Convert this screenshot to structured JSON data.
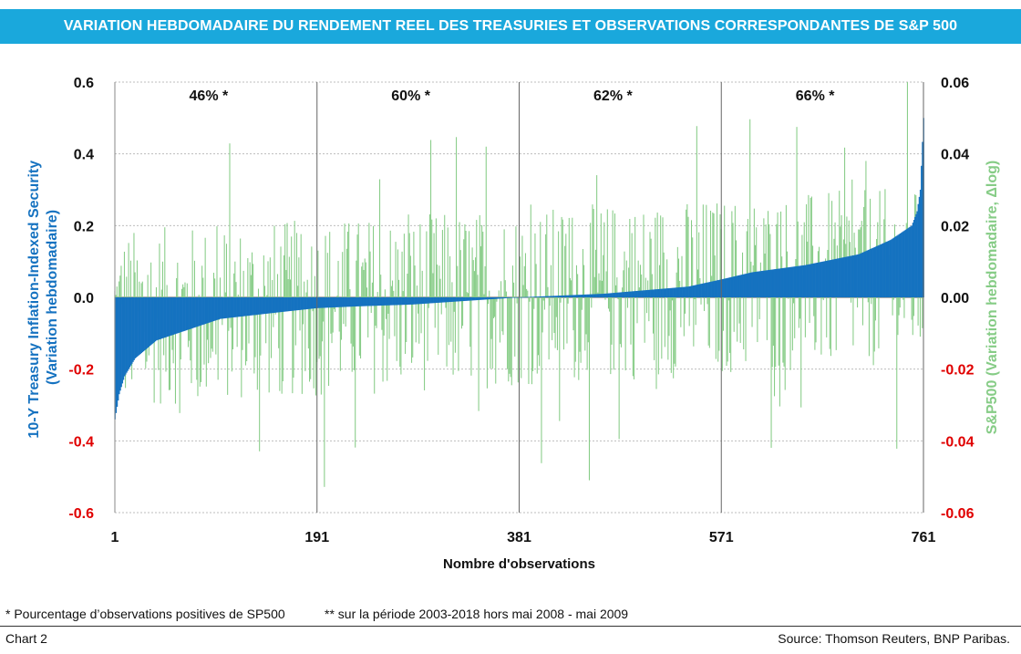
{
  "title": "VARIATION HEBDOMADAIRE DU RENDEMENT REEL DES TREASURIES ET OBSERVATIONS CORRESPONDANTES DE S&P 500",
  "chart_data": {
    "type": "bar",
    "x_label": "Nombre d'observations",
    "x_ticks": [
      1,
      191,
      381,
      571,
      761
    ],
    "x_range": [
      1,
      761
    ],
    "left_axis": {
      "label_line1": "10-Y Treasury Inflation-Indexed Security",
      "label_line2": "(Variation hebdomadaire)",
      "range": [
        -0.6,
        0.6
      ],
      "ticks": [
        "0.6",
        "0.4",
        "0.2",
        "0.0",
        "-0.2",
        "-0.4",
        "-0.6"
      ],
      "color": "#1572c0"
    },
    "right_axis": {
      "label": "S&P500 (Variation hebdomadaire, Δlog)",
      "range": [
        -0.06,
        0.06
      ],
      "ticks": [
        "0.06",
        "0.04",
        "0.02",
        "0.00",
        "-0.02",
        "-0.04",
        "-0.06"
      ],
      "color": "#86cc86"
    },
    "negative_tick_color": "#e00000",
    "grid": "horizontal dashed",
    "section_dividers": [
      191,
      381,
      571,
      761
    ],
    "section_annotations": [
      {
        "text": "46%",
        "star": "*"
      },
      {
        "text": "60%",
        "star": "*"
      },
      {
        "text": "62%",
        "star": "*"
      },
      {
        "text": "66%",
        "star": "*"
      }
    ],
    "series": [
      {
        "name": "10-Y Treasury Inflation-Indexed Security (Variation hebdomadaire)",
        "axis": "left",
        "type": "bar",
        "color": "#1572c0",
        "sorted_ascending": true,
        "x": [
          1,
          5,
          10,
          20,
          40,
          60,
          80,
          100,
          130,
          160,
          191,
          230,
          280,
          330,
          381,
          420,
          460,
          500,
          540,
          571,
          600,
          650,
          700,
          730,
          750,
          755,
          758,
          761
        ],
        "values": [
          -0.34,
          -0.27,
          -0.22,
          -0.17,
          -0.12,
          -0.1,
          -0.08,
          -0.06,
          -0.05,
          -0.04,
          -0.03,
          -0.025,
          -0.02,
          -0.01,
          0.0,
          0.005,
          0.01,
          0.02,
          0.03,
          0.05,
          0.07,
          0.09,
          0.12,
          0.16,
          0.2,
          0.24,
          0.3,
          0.5
        ]
      },
      {
        "name": "S&P500 (Variation hebdomadaire, Δlog)",
        "axis": "right",
        "type": "bar",
        "color": "#86cc86",
        "note": "weekly values, one per observation, ranging roughly from -0.06 to 0.06"
      }
    ]
  },
  "footnote_1": "* Pourcentage d’observations positives de SP500",
  "footnote_2": "** sur la période 2003-2018 hors mai 2008 - mai 2009",
  "chart_number": "Chart 2",
  "source": "Source: Thomson Reuters, BNP Paribas."
}
